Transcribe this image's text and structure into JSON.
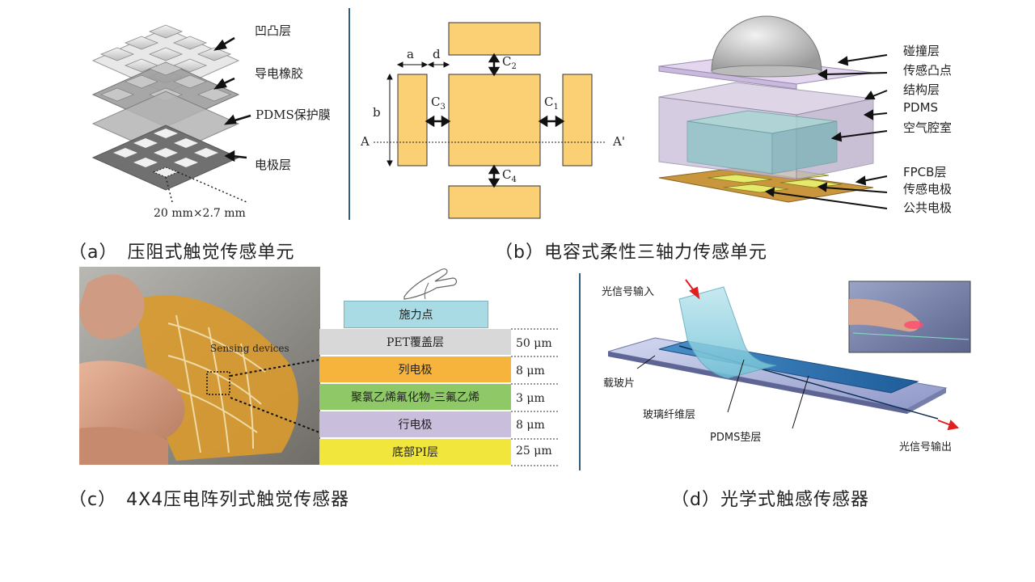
{
  "panel_a": {
    "labels": {
      "bumps": "凹凸层",
      "rubber": "导电橡胶",
      "film": "PDMS保护膜",
      "electrode": "电极层",
      "dimension": "20 mm×2.7 mm"
    },
    "caption": "（a）　压阻式触觉传感单元"
  },
  "panel_b": {
    "dims": {
      "a": "a",
      "d": "d",
      "b": "b",
      "A": "A",
      "A2": "A'"
    },
    "gaps": {
      "c1": "C",
      "c1_sub": "1",
      "c2": "C",
      "c2_sub": "2",
      "c3": "C",
      "c3_sub": "3",
      "c4": "C",
      "c4_sub": "4"
    },
    "labels": {
      "collision": "碰撞层",
      "bump": "传感凸点",
      "structure": "结构层",
      "pdms": "PDMS",
      "cavity": "空气腔室",
      "fpcb": "FPCB层",
      "sense_electrode": "传感电极",
      "common_electrode": "公共电极"
    },
    "caption": "（b）电容式柔性三轴力传感单元"
  },
  "panel_c": {
    "photo_label": "Sensing devices",
    "force_point": "施力点",
    "layers": [
      {
        "name": "PET覆盖层",
        "thickness": "50 μm",
        "color": "#d8d8d8"
      },
      {
        "name": "列电极",
        "thickness": "8 μm",
        "color": "#f6b43c"
      },
      {
        "name": "聚氯乙烯氟化物-三氟乙烯",
        "thickness": "3 μm",
        "color": "#8fc866"
      },
      {
        "name": "行电极",
        "thickness": "8 μm",
        "color": "#c9bedb"
      },
      {
        "name": "底部PI层",
        "thickness": "25 μm",
        "color": "#f0e63c"
      }
    ],
    "caption": "（c）　4X4压电阵列式触觉传感器"
  },
  "panel_d": {
    "labels": {
      "input": "光信号输入",
      "substrate": "载玻片",
      "fiber": "玻璃纤维层",
      "pad": "PDMS垫层",
      "output": "光信号输出"
    },
    "caption": "（d）光学式触感传感器"
  },
  "colors": {
    "divider": "#2f5f7f",
    "pad_yellow": "#fbd074",
    "glass_blue": "#2d6fb0"
  }
}
